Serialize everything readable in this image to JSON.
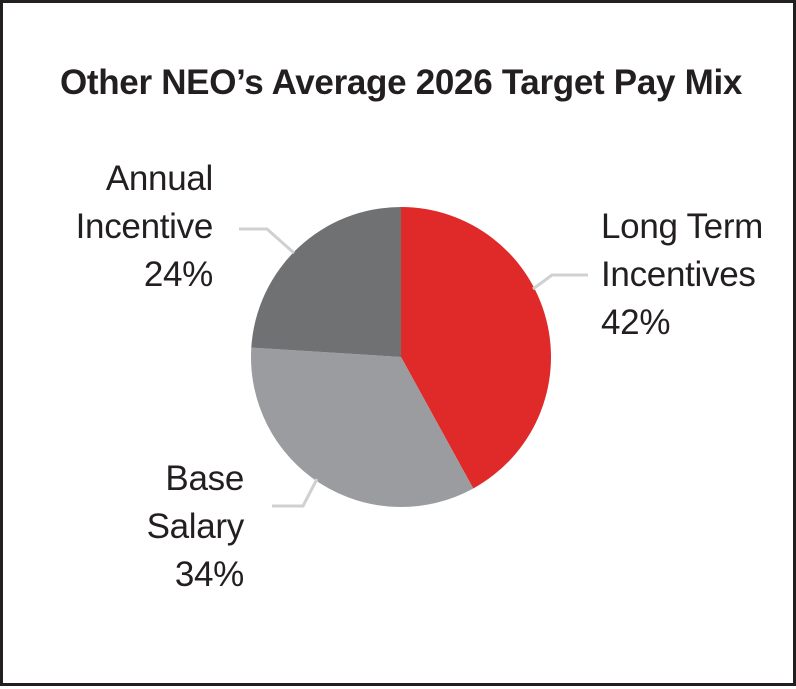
{
  "chart_data": {
    "type": "pie",
    "title": "Other NEO’s Average 2026 Target Pay Mix",
    "slices": [
      {
        "name_lines": [
          "Long Term",
          "Incentives"
        ],
        "percent_label": "42%",
        "value": 42,
        "color": "#e02a2a"
      },
      {
        "name_lines": [
          "Base",
          "Salary"
        ],
        "percent_label": "34%",
        "value": 34,
        "color": "#9a9c9f"
      },
      {
        "name_lines": [
          "Annual",
          "Incentive"
        ],
        "percent_label": "24%",
        "value": 24,
        "color": "#707173"
      }
    ],
    "start_angle_deg": 0,
    "direction": "clockwise",
    "leader_line_color": "#cfd0d2",
    "border_color": "#231f20"
  }
}
